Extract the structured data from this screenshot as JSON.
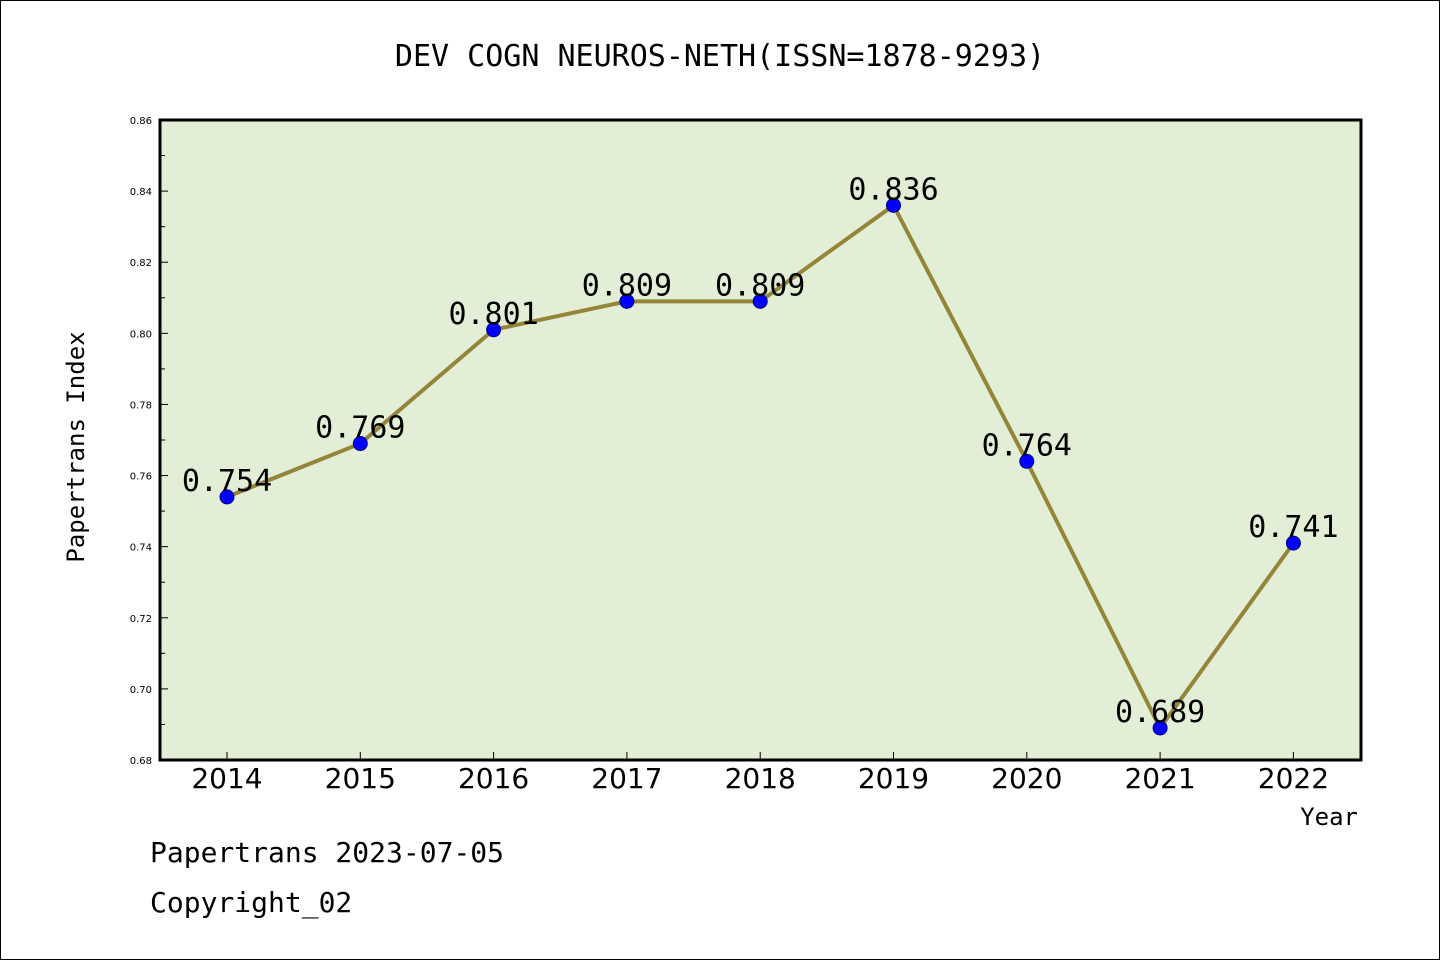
{
  "chart_data": {
    "type": "line",
    "title": "DEV COGN NEUROS-NETH(ISSN=1878-9293)",
    "xlabel": "Year",
    "ylabel": "Papertrans Index",
    "categories": [
      "2014",
      "2015",
      "2016",
      "2017",
      "2018",
      "2019",
      "2020",
      "2021",
      "2022"
    ],
    "values": [
      0.754,
      0.769,
      0.801,
      0.809,
      0.809,
      0.836,
      0.764,
      0.689,
      0.741
    ],
    "data_labels": [
      "0.754",
      "0.769",
      "0.801",
      "0.809",
      "0.809",
      "0.836",
      "0.764",
      "0.689",
      "0.741"
    ],
    "ylim": [
      0.68,
      0.86
    ],
    "yticks": [
      "0.68",
      "0.70",
      "0.72",
      "0.74",
      "0.76",
      "0.78",
      "0.80",
      "0.82",
      "0.84",
      "0.86"
    ],
    "grid": false,
    "legend": "none",
    "colors": {
      "plot_background": "#e2efd6",
      "line": "#948539",
      "marker": "#0000ff",
      "axis": "#000000"
    }
  },
  "footer": {
    "date_line": "Papertrans 2023-07-05",
    "copyright": "Copyright_02"
  }
}
